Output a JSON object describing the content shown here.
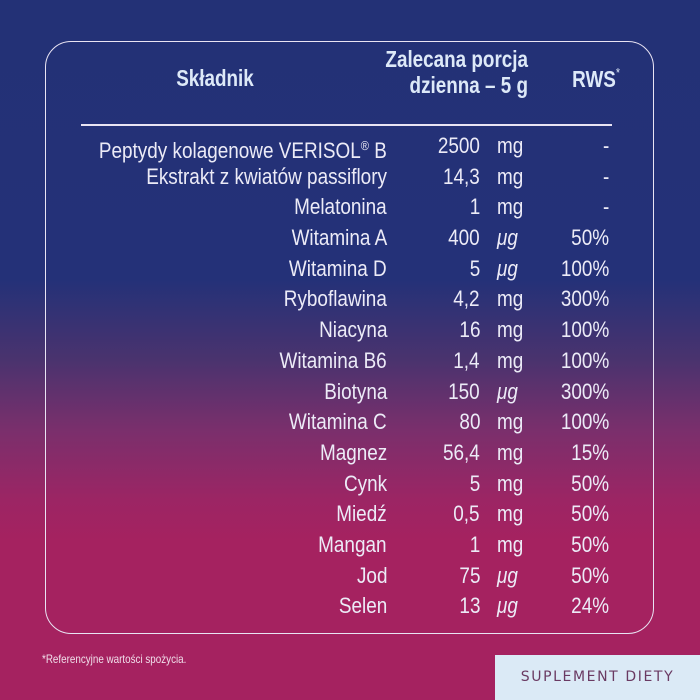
{
  "colors": {
    "background_top": "#243178",
    "background_bottom": "#a52260",
    "frame_border": "#e9e4f3",
    "header_text": "#dde9f8",
    "body_text": "#ecebf7",
    "badge_background": "#dbeaf6",
    "badge_text": "#6a3a62"
  },
  "table": {
    "headers": {
      "ingredient": "Składnik",
      "portion_line1": "Zalecana porcja",
      "portion_line2": "dzienna – 5 g",
      "rws": "RWS",
      "rws_mark": "*"
    },
    "rows": [
      {
        "name": "Peptydy kolagenowe VERISOL",
        "name_sup": "®",
        "name_suffix": " B",
        "amount": "2500",
        "unit": "mg",
        "rws": "-"
      },
      {
        "name": "Ekstrakt z kwiatów passiflory",
        "amount": "14,3",
        "unit": "mg",
        "rws": "-"
      },
      {
        "name": "Melatonina",
        "amount": "1",
        "unit": "mg",
        "rws": "-"
      },
      {
        "name": "Witamina A",
        "amount": "400",
        "unit": "μg",
        "rws": "50%"
      },
      {
        "name": "Witamina D",
        "amount": "5",
        "unit": "μg",
        "rws": "100%"
      },
      {
        "name": "Ryboflawina",
        "amount": "4,2",
        "unit": "mg",
        "rws": "300%"
      },
      {
        "name": "Niacyna",
        "amount": "16",
        "unit": "mg",
        "rws": "100%"
      },
      {
        "name": "Witamina B6",
        "amount": "1,4",
        "unit": "mg",
        "rws": "100%"
      },
      {
        "name": "Biotyna",
        "amount": "150",
        "unit": "μg",
        "rws": "300%"
      },
      {
        "name": "Witamina C",
        "amount": "80",
        "unit": "mg",
        "rws": "100%"
      },
      {
        "name": "Magnez",
        "amount": "56,4",
        "unit": "mg",
        "rws": "15%"
      },
      {
        "name": "Cynk",
        "amount": "5",
        "unit": "mg",
        "rws": "50%"
      },
      {
        "name": "Miedź",
        "amount": "0,5",
        "unit": "mg",
        "rws": "50%"
      },
      {
        "name": "Mangan",
        "amount": "1",
        "unit": "mg",
        "rws": "50%"
      },
      {
        "name": "Jod",
        "amount": "75",
        "unit": "μg",
        "rws": "50%"
      },
      {
        "name": "Selen",
        "amount": "13",
        "unit": "μg",
        "rws": "24%"
      }
    ]
  },
  "footnote": "*Referencyjne wartości spożycia.",
  "badge": "SUPLEMENT DIETY"
}
